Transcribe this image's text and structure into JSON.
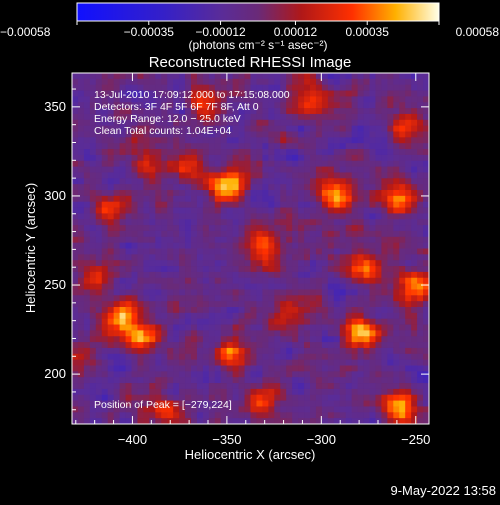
{
  "chart_data": {
    "type": "heatmap",
    "title": "Reconstructed RHESSI Image",
    "xlabel": "Heliocentric X (arcsec)",
    "ylabel": "Heliocentric Y (arcsec)",
    "xlim": [
      -432,
      -243
    ],
    "ylim": [
      172,
      369
    ],
    "x_ticks": [
      -400,
      -350,
      -300,
      -250
    ],
    "x_tick_labels": [
      "−400",
      "−350",
      "−300",
      "−250"
    ],
    "y_ticks": [
      200,
      250,
      300,
      350
    ],
    "y_tick_labels": [
      "200",
      "250",
      "300",
      "350"
    ],
    "colorbar": {
      "range": [
        -0.00058,
        0.00058
      ],
      "ticks": [
        -0.00058,
        -0.00035,
        -0.00012,
        0.00012,
        0.00035,
        0.00058
      ],
      "tick_labels": [
        "−0.00058",
        "−0.00035",
        "−0.00012",
        "0.00012",
        "0.00035",
        "0.00058"
      ],
      "unit_label": "(photons cm⁻² s⁻¹ asec⁻²)"
    },
    "annotations": [
      "13-Jul-2010 17:09:12.000 to 17:15:08.000",
      "Detectors: 3F 4F 5F 6F 7F 8F, Att 0",
      "Energy Range: 12.0 − 25.0 keV",
      "Clean    Total counts: 1.04E+04"
    ],
    "peak_label": "Position of Peak = [−279,224]",
    "peak_position": [
      -279,
      224
    ],
    "grid": false,
    "sources": [
      {
        "x": -350,
        "y": 305,
        "value": 0.00058
      },
      {
        "x": -407,
        "y": 232,
        "value": 0.00052
      },
      {
        "x": -395,
        "y": 220,
        "value": 0.00048
      },
      {
        "x": -279,
        "y": 224,
        "value": 0.00058
      },
      {
        "x": -258,
        "y": 180,
        "value": 0.0005
      },
      {
        "x": -275,
        "y": 260,
        "value": 0.00046
      },
      {
        "x": -290,
        "y": 300,
        "value": 0.00045
      },
      {
        "x": -260,
        "y": 298,
        "value": 0.0004
      },
      {
        "x": -250,
        "y": 250,
        "value": 0.00044
      },
      {
        "x": -420,
        "y": 255,
        "value": 0.0004
      },
      {
        "x": -348,
        "y": 212,
        "value": 0.00038
      },
      {
        "x": -370,
        "y": 318,
        "value": 0.00035
      },
      {
        "x": -392,
        "y": 318,
        "value": 0.0003
      },
      {
        "x": -330,
        "y": 270,
        "value": 0.00033
      },
      {
        "x": -303,
        "y": 355,
        "value": 0.00034
      },
      {
        "x": -410,
        "y": 292,
        "value": 0.00028
      },
      {
        "x": -385,
        "y": 180,
        "value": 0.00032
      },
      {
        "x": -330,
        "y": 185,
        "value": 0.0003
      },
      {
        "x": -315,
        "y": 232,
        "value": 0.0003
      },
      {
        "x": -360,
        "y": 350,
        "value": 0.00026
      },
      {
        "x": -255,
        "y": 340,
        "value": 0.0003
      },
      {
        "x": -430,
        "y": 208,
        "value": 0.0003
      }
    ]
  },
  "footer": {
    "date": "9-May-2022 13:58"
  }
}
